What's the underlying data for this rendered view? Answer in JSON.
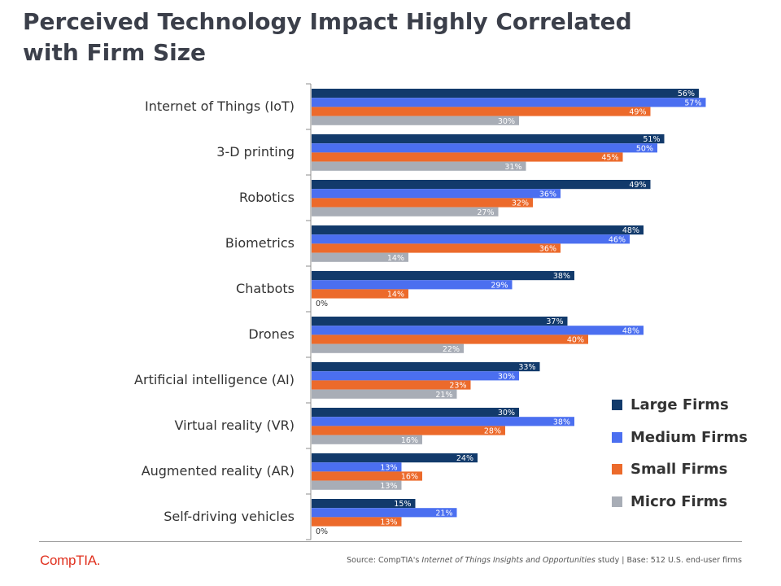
{
  "title_lines": [
    "Perceived Technology Impact Highly Correlated",
    "with Firm Size"
  ],
  "chart_data": {
    "type": "bar",
    "orientation": "horizontal",
    "title": "Perceived Technology Impact Highly Correlated with Firm Size",
    "categories": [
      "Internet of Things (IoT)",
      "3-D printing",
      "Robotics",
      "Biometrics",
      "Chatbots",
      "Drones",
      "Artificial intelligence (AI)",
      "Virtual reality (VR)",
      "Augmented reality (AR)",
      "Self-driving vehicles"
    ],
    "series": [
      {
        "name": "Large Firms",
        "color": "#123a6b",
        "values": [
          56,
          51,
          49,
          48,
          38,
          37,
          33,
          30,
          24,
          15
        ]
      },
      {
        "name": "Medium Firms",
        "color": "#4b6ff0",
        "values": [
          57,
          50,
          36,
          46,
          29,
          48,
          30,
          38,
          13,
          21
        ]
      },
      {
        "name": "Small Firms",
        "color": "#ec6a2b",
        "values": [
          49,
          45,
          32,
          36,
          14,
          40,
          23,
          28,
          16,
          13
        ]
      },
      {
        "name": "Micro Firms",
        "color": "#a8adb6",
        "values": [
          30,
          31,
          27,
          14,
          0,
          22,
          21,
          16,
          13,
          0
        ]
      }
    ],
    "value_suffix": "%",
    "xlim": [
      0,
      70
    ],
    "grid": false,
    "legend_position": "bottom-right"
  },
  "footer": {
    "logo": "CompTIA.",
    "source_prefix": "Source: CompTIA's ",
    "source_title": "Internet of Things Insights and Opportunities",
    "source_suffix": " study | Base: 512 U.S. end-user firms"
  }
}
